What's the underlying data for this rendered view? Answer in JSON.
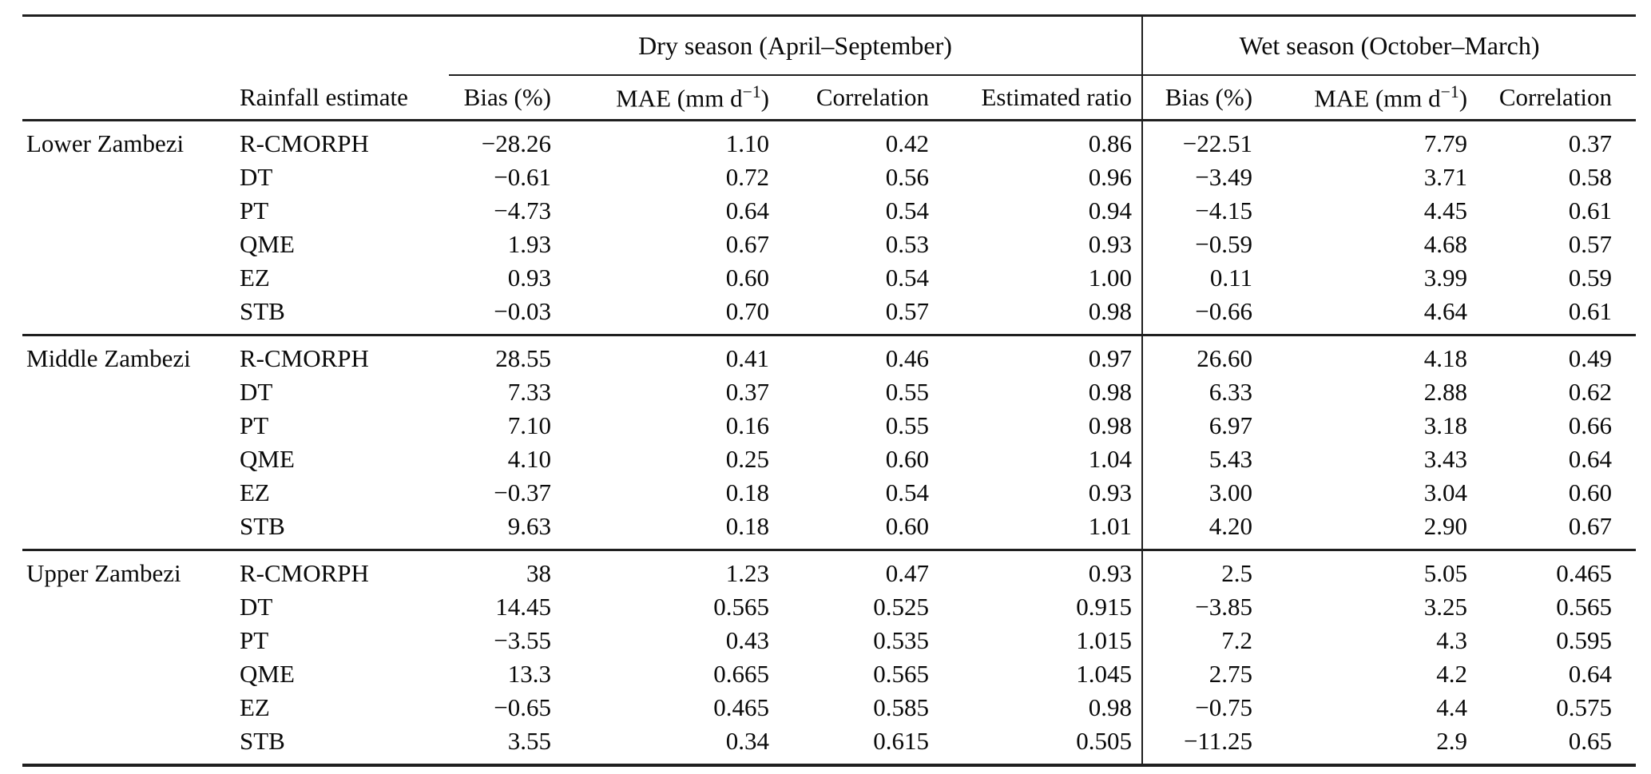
{
  "page": {
    "background": "#ffffff",
    "text_color": "#0a0a0a",
    "rule_color": "#1f1f1f"
  },
  "table": {
    "season_headers": {
      "dry": "Dry season (April–September)",
      "wet": "Wet season (October–March)"
    },
    "columns": {
      "rainfall_estimate": "Rainfall estimate",
      "dry_bias": "Bias (%)",
      "dry_mae_pre": "MAE (mm d",
      "dry_mae_sup": "−1",
      "dry_mae_post": ")",
      "dry_correlation": "Correlation",
      "dry_estimated_ratio": "Estimated ratio",
      "wet_bias": "Bias (%)",
      "wet_mae_pre": "MAE (mm d",
      "wet_mae_sup": "−1",
      "wet_mae_post": ")",
      "wet_correlation": "Correlation"
    },
    "groups": [
      {
        "region": "Lower Zambezi",
        "rows": [
          {
            "estimate": "R-CMORPH",
            "dry": [
              "−28.26",
              "1.10",
              "0.42",
              "0.86"
            ],
            "wet": [
              "−22.51",
              "7.79",
              "0.37"
            ]
          },
          {
            "estimate": "DT",
            "dry": [
              "−0.61",
              "0.72",
              "0.56",
              "0.96"
            ],
            "wet": [
              "−3.49",
              "3.71",
              "0.58"
            ]
          },
          {
            "estimate": "PT",
            "dry": [
              "−4.73",
              "0.64",
              "0.54",
              "0.94"
            ],
            "wet": [
              "−4.15",
              "4.45",
              "0.61"
            ]
          },
          {
            "estimate": "QME",
            "dry": [
              "1.93",
              "0.67",
              "0.53",
              "0.93"
            ],
            "wet": [
              "−0.59",
              "4.68",
              "0.57"
            ]
          },
          {
            "estimate": "EZ",
            "dry": [
              "0.93",
              "0.60",
              "0.54",
              "1.00"
            ],
            "wet": [
              "0.11",
              "3.99",
              "0.59"
            ]
          },
          {
            "estimate": "STB",
            "dry": [
              "−0.03",
              "0.70",
              "0.57",
              "0.98"
            ],
            "wet": [
              "−0.66",
              "4.64",
              "0.61"
            ]
          }
        ]
      },
      {
        "region": "Middle Zambezi",
        "rows": [
          {
            "estimate": "R-CMORPH",
            "dry": [
              "28.55",
              "0.41",
              "0.46",
              "0.97"
            ],
            "wet": [
              "26.60",
              "4.18",
              "0.49"
            ]
          },
          {
            "estimate": "DT",
            "dry": [
              "7.33",
              "0.37",
              "0.55",
              "0.98"
            ],
            "wet": [
              "6.33",
              "2.88",
              "0.62"
            ]
          },
          {
            "estimate": "PT",
            "dry": [
              "7.10",
              "0.16",
              "0.55",
              "0.98"
            ],
            "wet": [
              "6.97",
              "3.18",
              "0.66"
            ]
          },
          {
            "estimate": "QME",
            "dry": [
              "4.10",
              "0.25",
              "0.60",
              "1.04"
            ],
            "wet": [
              "5.43",
              "3.43",
              "0.64"
            ]
          },
          {
            "estimate": "EZ",
            "dry": [
              "−0.37",
              "0.18",
              "0.54",
              "0.93"
            ],
            "wet": [
              "3.00",
              "3.04",
              "0.60"
            ]
          },
          {
            "estimate": "STB",
            "dry": [
              "9.63",
              "0.18",
              "0.60",
              "1.01"
            ],
            "wet": [
              "4.20",
              "2.90",
              "0.67"
            ]
          }
        ]
      },
      {
        "region": "Upper Zambezi",
        "rows": [
          {
            "estimate": "R-CMORPH",
            "dry": [
              "38",
              "1.23",
              "0.47",
              "0.93"
            ],
            "wet": [
              "2.5",
              "5.05",
              "0.465"
            ]
          },
          {
            "estimate": "DT",
            "dry": [
              "14.45",
              "0.565",
              "0.525",
              "0.915"
            ],
            "wet": [
              "−3.85",
              "3.25",
              "0.565"
            ]
          },
          {
            "estimate": "PT",
            "dry": [
              "−3.55",
              "0.43",
              "0.535",
              "1.015"
            ],
            "wet": [
              "7.2",
              "4.3",
              "0.595"
            ]
          },
          {
            "estimate": "QME",
            "dry": [
              "13.3",
              "0.665",
              "0.565",
              "1.045"
            ],
            "wet": [
              "2.75",
              "4.2",
              "0.64"
            ]
          },
          {
            "estimate": "EZ",
            "dry": [
              "−0.65",
              "0.465",
              "0.585",
              "0.98"
            ],
            "wet": [
              "−0.75",
              "4.4",
              "0.575"
            ]
          },
          {
            "estimate": "STB",
            "dry": [
              "3.55",
              "0.34",
              "0.615",
              "0.505"
            ],
            "wet": [
              "−11.25",
              "2.9",
              "0.65"
            ]
          }
        ]
      }
    ]
  }
}
